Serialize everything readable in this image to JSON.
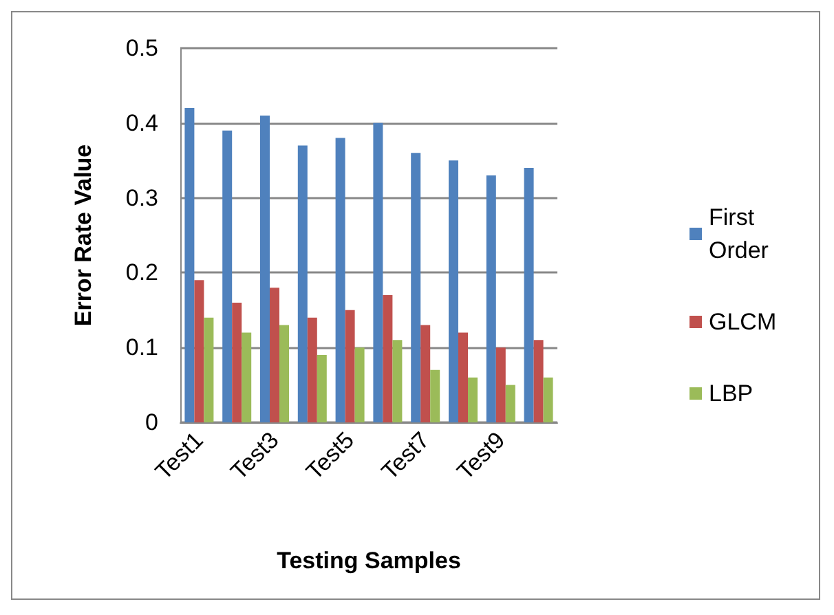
{
  "chart_data": {
    "type": "bar",
    "xlabel": "Testing Samples",
    "ylabel": "Error Rate Value",
    "categories": [
      "Test1",
      null,
      "Test3",
      null,
      "Test5",
      null,
      "Test7",
      null,
      "Test9",
      null
    ],
    "series": [
      {
        "name": "First Order",
        "color": "#4f81bd",
        "values": [
          0.42,
          0.39,
          0.41,
          0.37,
          0.38,
          0.4,
          0.36,
          0.35,
          0.33,
          0.34
        ]
      },
      {
        "name": "GLCM",
        "color": "#c0504d",
        "values": [
          0.19,
          0.16,
          0.18,
          0.14,
          0.15,
          0.17,
          0.13,
          0.12,
          0.1,
          0.11
        ]
      },
      {
        "name": "LBP",
        "color": "#9bbb59",
        "values": [
          0.14,
          0.12,
          0.13,
          0.09,
          0.1,
          0.11,
          0.07,
          0.06,
          0.05,
          0.06
        ]
      }
    ],
    "ylim": [
      0,
      0.5
    ],
    "yticks": [
      0,
      0.1,
      0.2,
      0.3,
      0.4,
      0.5
    ],
    "grid": "y",
    "legend": "right"
  }
}
